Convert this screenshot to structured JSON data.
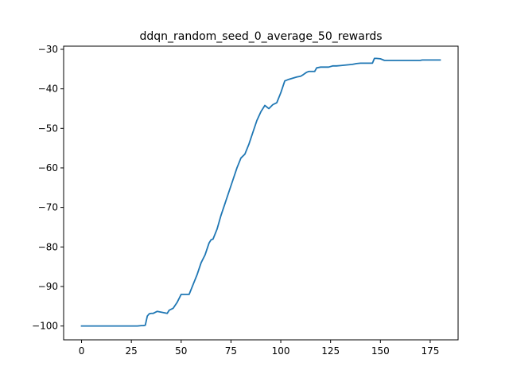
{
  "chart_data": {
    "type": "line",
    "title": "ddqn_random_seed_0_average_50_rewards",
    "xlabel": "",
    "ylabel": "",
    "xlim": [
      -9,
      189
    ],
    "ylim": [
      -103.5,
      -29.2
    ],
    "x_ticks": [
      0,
      25,
      50,
      75,
      100,
      125,
      150,
      175
    ],
    "x_tick_labels": [
      "0",
      "25",
      "50",
      "75",
      "100",
      "125",
      "150",
      "175"
    ],
    "y_ticks": [
      -100,
      -90,
      -80,
      -70,
      -60,
      -50,
      -40,
      -30
    ],
    "y_tick_labels": [
      "−100",
      "−90",
      "−80",
      "−70",
      "−60",
      "−50",
      "−40",
      "−30"
    ],
    "grid": false,
    "series": [
      {
        "color": "#1f77b4",
        "x": [
          0,
          5,
          10,
          15,
          20,
          25,
          28,
          30,
          31,
          32,
          33,
          34,
          35,
          36,
          38,
          40,
          42,
          43,
          44,
          46,
          48,
          50,
          52,
          54,
          56,
          58,
          60,
          62,
          64,
          65,
          66,
          68,
          70,
          72,
          74,
          76,
          78,
          80,
          82,
          84,
          86,
          88,
          90,
          92,
          94,
          95,
          96,
          98,
          100,
          102,
          104,
          106,
          108,
          110,
          111,
          113,
          114,
          115,
          117,
          118,
          120,
          122,
          124,
          126,
          128,
          130,
          132,
          134,
          136,
          138,
          140,
          142,
          144,
          146,
          147,
          148,
          150,
          152,
          153,
          155,
          160,
          165,
          170,
          171,
          175,
          180
        ],
        "y": [
          -100.0,
          -100.0,
          -100.0,
          -100.0,
          -100.0,
          -100.0,
          -100.0,
          -99.9,
          -99.9,
          -99.8,
          -97.5,
          -96.9,
          -96.8,
          -96.8,
          -96.3,
          -96.5,
          -96.7,
          -96.8,
          -96.0,
          -95.5,
          -94.0,
          -92.0,
          -92.0,
          -92.0,
          -89.5,
          -87.0,
          -84.0,
          -82.0,
          -79.0,
          -78.2,
          -78.0,
          -75.5,
          -72.0,
          -69.0,
          -66.0,
          -63.0,
          -60.0,
          -57.5,
          -56.5,
          -54.0,
          -51.0,
          -48.0,
          -45.8,
          -44.2,
          -45.0,
          -44.5,
          -44.0,
          -43.5,
          -41.0,
          -38.0,
          -37.6,
          -37.3,
          -37.0,
          -36.8,
          -36.5,
          -35.8,
          -35.6,
          -35.6,
          -35.6,
          -34.7,
          -34.5,
          -34.5,
          -34.5,
          -34.2,
          -34.2,
          -34.1,
          -34.0,
          -33.9,
          -33.8,
          -33.6,
          -33.5,
          -33.5,
          -33.5,
          -33.5,
          -32.3,
          -32.3,
          -32.4,
          -32.8,
          -32.8,
          -32.8,
          -32.8,
          -32.8,
          -32.8,
          -32.7,
          -32.7,
          -32.7
        ]
      }
    ]
  }
}
